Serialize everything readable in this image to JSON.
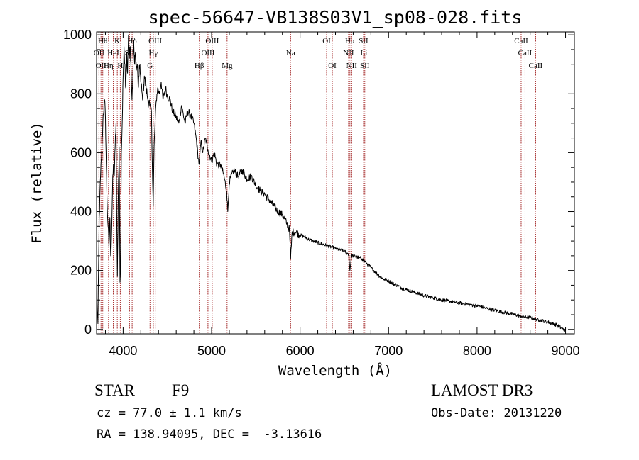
{
  "chart_data": {
    "type": "line",
    "title": "spec-56647-VB138S03V1_sp08-028.fits",
    "xlabel": "Wavelength (Å)",
    "ylabel": "Flux (relative)",
    "xlim": [
      3700,
      9100
    ],
    "ylim": [
      -15,
      1010
    ],
    "x_ticks": [
      4000,
      5000,
      6000,
      7000,
      8000,
      9000
    ],
    "y_ticks": [
      0,
      200,
      400,
      600,
      800,
      1000
    ],
    "series": [
      {
        "name": "spectrum",
        "color": "#000000",
        "points": [
          [
            3700,
            120
          ],
          [
            3715,
            20
          ],
          [
            3730,
            380
          ],
          [
            3745,
            520
          ],
          [
            3760,
            610
          ],
          [
            3775,
            730
          ],
          [
            3790,
            780
          ],
          [
            3800,
            720
          ],
          [
            3810,
            560
          ],
          [
            3820,
            420
          ],
          [
            3830,
            350
          ],
          [
            3840,
            280
          ],
          [
            3850,
            380
          ],
          [
            3860,
            250
          ],
          [
            3870,
            330
          ],
          [
            3880,
            470
          ],
          [
            3890,
            560
          ],
          [
            3900,
            520
          ],
          [
            3910,
            620
          ],
          [
            3920,
            700
          ],
          [
            3930,
            300
          ],
          [
            3935,
            180
          ],
          [
            3945,
            450
          ],
          [
            3955,
            620
          ],
          [
            3965,
            160
          ],
          [
            3970,
            200
          ],
          [
            3980,
            600
          ],
          [
            3990,
            700
          ],
          [
            4000,
            860
          ],
          [
            4010,
            960
          ],
          [
            4020,
            900
          ],
          [
            4030,
            820
          ],
          [
            4040,
            940
          ],
          [
            4050,
            870
          ],
          [
            4060,
            1000
          ],
          [
            4070,
            920
          ],
          [
            4080,
            960
          ],
          [
            4090,
            880
          ],
          [
            4100,
            780
          ],
          [
            4110,
            860
          ],
          [
            4120,
            980
          ],
          [
            4130,
            900
          ],
          [
            4140,
            940
          ],
          [
            4150,
            880
          ],
          [
            4160,
            900
          ],
          [
            4170,
            820
          ],
          [
            4180,
            860
          ],
          [
            4190,
            900
          ],
          [
            4200,
            840
          ],
          [
            4220,
            780
          ],
          [
            4240,
            860
          ],
          [
            4260,
            820
          ],
          [
            4280,
            780
          ],
          [
            4300,
            760
          ],
          [
            4320,
            740
          ],
          [
            4330,
            560
          ],
          [
            4340,
            420
          ],
          [
            4350,
            620
          ],
          [
            4370,
            760
          ],
          [
            4390,
            820
          ],
          [
            4410,
            800
          ],
          [
            4430,
            840
          ],
          [
            4450,
            780
          ],
          [
            4480,
            820
          ],
          [
            4500,
            790
          ],
          [
            4530,
            780
          ],
          [
            4560,
            740
          ],
          [
            4600,
            720
          ],
          [
            4630,
            700
          ],
          [
            4660,
            760
          ],
          [
            4700,
            700
          ],
          [
            4730,
            740
          ],
          [
            4760,
            730
          ],
          [
            4800,
            700
          ],
          [
            4830,
            640
          ],
          [
            4850,
            580
          ],
          [
            4861,
            560
          ],
          [
            4880,
            640
          ],
          [
            4900,
            600
          ],
          [
            4930,
            650
          ],
          [
            4960,
            610
          ],
          [
            5000,
            570
          ],
          [
            5030,
            600
          ],
          [
            5060,
            560
          ],
          [
            5100,
            560
          ],
          [
            5140,
            520
          ],
          [
            5170,
            470
          ],
          [
            5183,
            400
          ],
          [
            5200,
            500
          ],
          [
            5250,
            540
          ],
          [
            5300,
            520
          ],
          [
            5350,
            540
          ],
          [
            5400,
            510
          ],
          [
            5450,
            520
          ],
          [
            5500,
            490
          ],
          [
            5550,
            470
          ],
          [
            5600,
            460
          ],
          [
            5650,
            440
          ],
          [
            5700,
            420
          ],
          [
            5750,
            400
          ],
          [
            5800,
            390
          ],
          [
            5850,
            360
          ],
          [
            5880,
            340
          ],
          [
            5893,
            240
          ],
          [
            5910,
            330
          ],
          [
            5950,
            330
          ],
          [
            6000,
            320
          ],
          [
            6050,
            315
          ],
          [
            6100,
            305
          ],
          [
            6150,
            300
          ],
          [
            6200,
            295
          ],
          [
            6250,
            290
          ],
          [
            6300,
            285
          ],
          [
            6350,
            280
          ],
          [
            6400,
            275
          ],
          [
            6450,
            270
          ],
          [
            6500,
            265
          ],
          [
            6550,
            255
          ],
          [
            6563,
            200
          ],
          [
            6580,
            250
          ],
          [
            6600,
            250
          ],
          [
            6650,
            245
          ],
          [
            6700,
            240
          ],
          [
            6750,
            225
          ],
          [
            6800,
            210
          ],
          [
            6850,
            195
          ],
          [
            6900,
            180
          ],
          [
            6950,
            170
          ],
          [
            7000,
            165
          ],
          [
            7050,
            155
          ],
          [
            7100,
            150
          ],
          [
            7150,
            140
          ],
          [
            7200,
            135
          ],
          [
            7300,
            125
          ],
          [
            7400,
            115
          ],
          [
            7500,
            108
          ],
          [
            7600,
            100
          ],
          [
            7700,
            95
          ],
          [
            7800,
            90
          ],
          [
            7900,
            85
          ],
          [
            8000,
            80
          ],
          [
            8100,
            72
          ],
          [
            8200,
            65
          ],
          [
            8300,
            58
          ],
          [
            8400,
            52
          ],
          [
            8500,
            45
          ],
          [
            8600,
            40
          ],
          [
            8700,
            32
          ],
          [
            8800,
            25
          ],
          [
            8900,
            15
          ],
          [
            8950,
            5
          ],
          [
            9000,
            -5
          ]
        ]
      }
    ],
    "lines": [
      {
        "wavelength": 3727,
        "label": "OII",
        "row": 2
      },
      {
        "wavelength": 3750,
        "label": "OII",
        "row": 3
      },
      {
        "wavelength": 3770,
        "label": "Hθ",
        "row": 1
      },
      {
        "wavelength": 3835,
        "label": "Hη",
        "row": 3
      },
      {
        "wavelength": 3889,
        "label": "HeI",
        "row": 2
      },
      {
        "wavelength": 3934,
        "label": "K",
        "row": 1
      },
      {
        "wavelength": 3968,
        "label": "H",
        "row": 3
      },
      {
        "wavelength": 4072,
        "label": "SII",
        "row": 2
      },
      {
        "wavelength": 4102,
        "label": "Hδ",
        "row": 1
      },
      {
        "wavelength": 4304,
        "label": "G",
        "row": 3
      },
      {
        "wavelength": 4341,
        "label": "Hγ",
        "row": 2
      },
      {
        "wavelength": 4363,
        "label": "OIII",
        "row": 1
      },
      {
        "wavelength": 4861,
        "label": "Hβ",
        "row": 3
      },
      {
        "wavelength": 4959,
        "label": "OIII",
        "row": 2
      },
      {
        "wavelength": 5007,
        "label": "OIII",
        "row": 1
      },
      {
        "wavelength": 5175,
        "label": "Mg",
        "row": 3
      },
      {
        "wavelength": 5893,
        "label": "Na",
        "row": 2
      },
      {
        "wavelength": 6300,
        "label": "OI",
        "row": 1
      },
      {
        "wavelength": 6364,
        "label": "OI",
        "row": 3
      },
      {
        "wavelength": 6548,
        "label": "NII",
        "row": 2
      },
      {
        "wavelength": 6563,
        "label": "Hα",
        "row": 1
      },
      {
        "wavelength": 6583,
        "label": "NII",
        "row": 3
      },
      {
        "wavelength": 6717,
        "label": "SII",
        "row": 1
      },
      {
        "wavelength": 6720,
        "label": "Li",
        "row": 2
      },
      {
        "wavelength": 6731,
        "label": "SII",
        "row": 3
      },
      {
        "wavelength": 8498,
        "label": "CaII",
        "row": 1
      },
      {
        "wavelength": 8542,
        "label": "CaII",
        "row": 2
      },
      {
        "wavelength": 8662,
        "label": "CaII",
        "row": 3
      }
    ],
    "line_color": "#a52a2a"
  },
  "info": {
    "class": "STAR",
    "subclass": "F9",
    "survey": "LAMOST DR3",
    "cz": "cz = 77.0 ± 1.1 km/s",
    "obs_date": "Obs-Date: 20131220",
    "radec": "RA = 138.94095, DEC =  -3.13616"
  }
}
